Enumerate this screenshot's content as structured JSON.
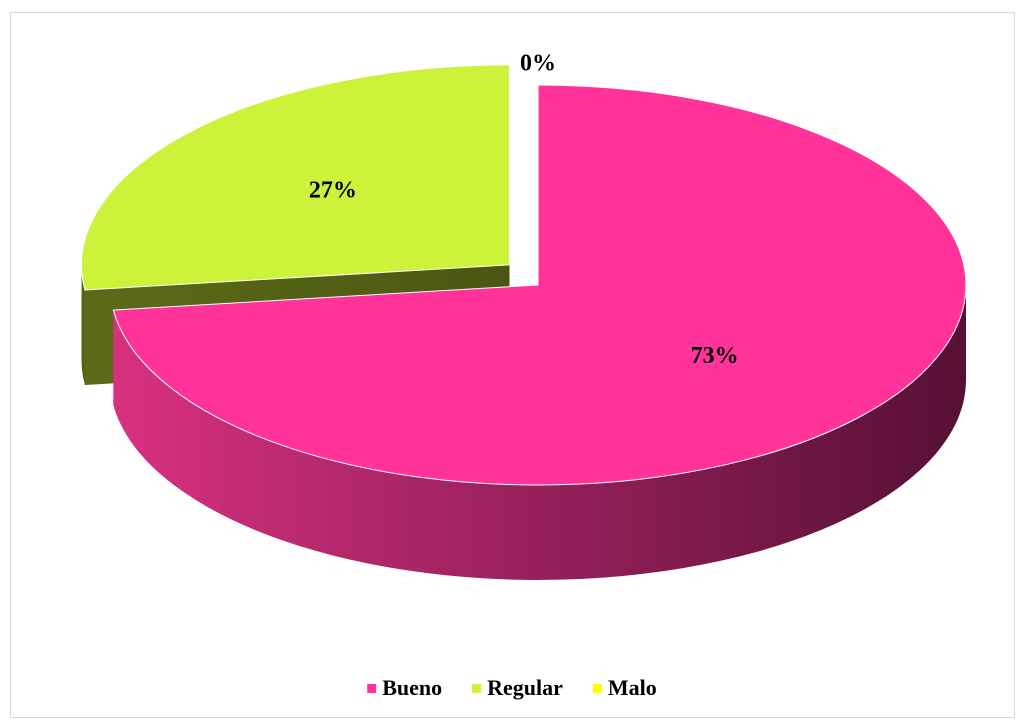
{
  "chart_data": {
    "type": "pie",
    "three_d": true,
    "categories": [
      "Bueno",
      "Regular",
      "Malo"
    ],
    "values": [
      73,
      27,
      0
    ],
    "value_labels": [
      "73%",
      "27%",
      "0%"
    ],
    "colors": [
      "#ff3399",
      "#ccf23a",
      "#ffff00"
    ],
    "explode": [
      false,
      true,
      false
    ],
    "legend": "bottom"
  }
}
